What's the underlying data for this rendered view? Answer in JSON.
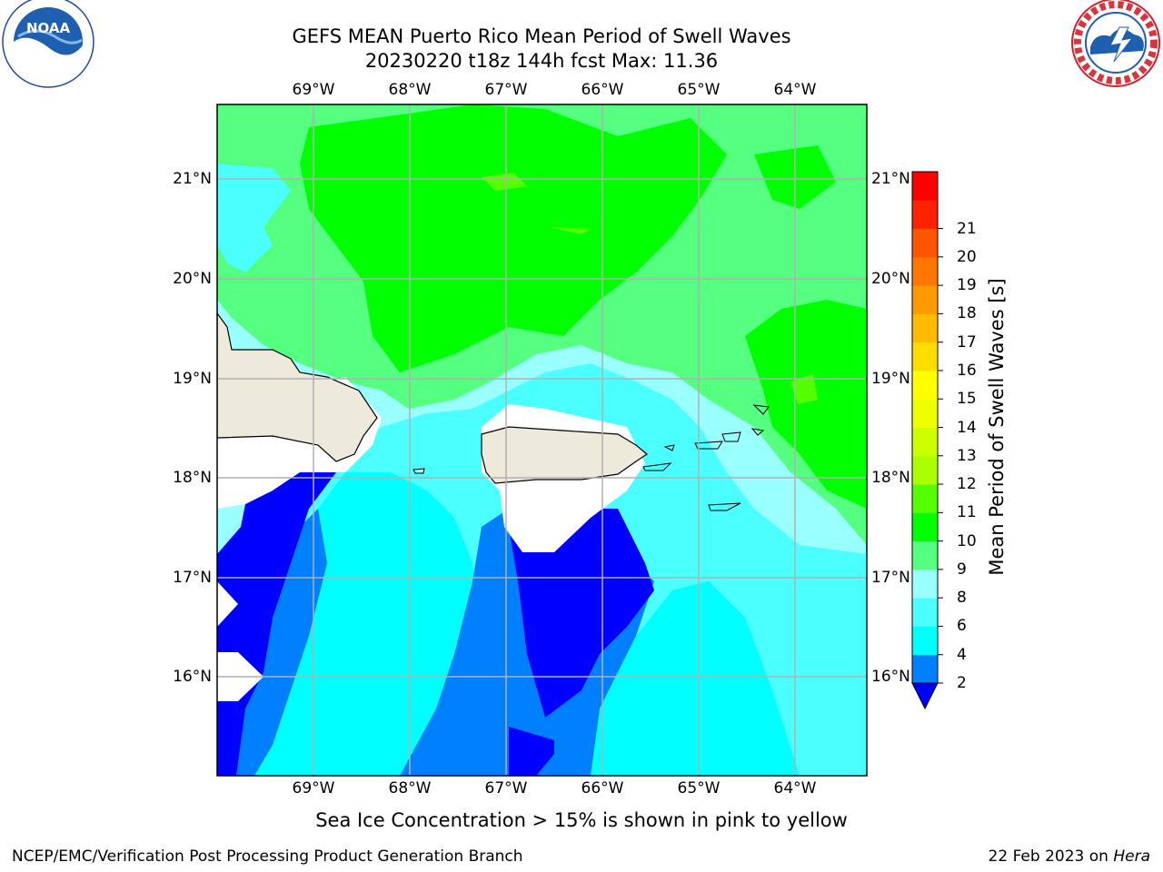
{
  "title": {
    "line1": "GEFS MEAN Puerto Rico Mean Period of Swell Waves",
    "line2": "20230220 t18z 144h fcst   Max: 11.36"
  },
  "logos": {
    "left": "NOAA",
    "left_ring_text": "NATIONAL OCEANIC AND ATMOSPHERIC ADMINISTRATION • U.S. DEPARTMENT OF COMMERCE",
    "right_ring_text": "NATIONAL WEATHER SERVICE"
  },
  "map": {
    "lon_labels": [
      "69°W",
      "68°W",
      "67°W",
      "66°W",
      "65°W",
      "64°W"
    ],
    "lat_labels": [
      "21°N",
      "20°N",
      "19°N",
      "18°N",
      "17°N",
      "16°N"
    ],
    "colors": {
      "land": "#eeeadb",
      "grid": "#b0b0b0",
      "bg_band_8_9": "#99ffff",
      "band_6_8": "#4cffff",
      "band_4_6": "#00ffff",
      "band_2_4": "#0080ff",
      "below_2": "#0000ff",
      "band_9_10": "#55ff7f",
      "band_10_11": "#00ff00",
      "band_11_12": "#55ff00",
      "undefined": "#ffffff"
    }
  },
  "colorbar": {
    "title": "Mean Period of Swell Waves [s]",
    "ticks": [
      "2",
      "4",
      "6",
      "8",
      "9",
      "10",
      "11",
      "12",
      "13",
      "14",
      "15",
      "16",
      "17",
      "18",
      "19",
      "20",
      "21"
    ],
    "colors": [
      "#0080ff",
      "#00ffff",
      "#4cffff",
      "#99ffff",
      "#55ff7f",
      "#00ff00",
      "#55ff00",
      "#aaff00",
      "#ccff00",
      "#eeff00",
      "#ffff00",
      "#ffdd00",
      "#ffbb00",
      "#ff9900",
      "#ff7700",
      "#ff5500",
      "#ff2200",
      "#ff0000"
    ],
    "extend_color": "#0000ff"
  },
  "caption": "Sea Ice Concentration > 15% is shown in pink to yellow",
  "footer": {
    "left": "NCEP/EMC/Verification Post Processing Product Generation Branch",
    "date": "22 Feb 2023 on ",
    "machine": "Hera"
  }
}
